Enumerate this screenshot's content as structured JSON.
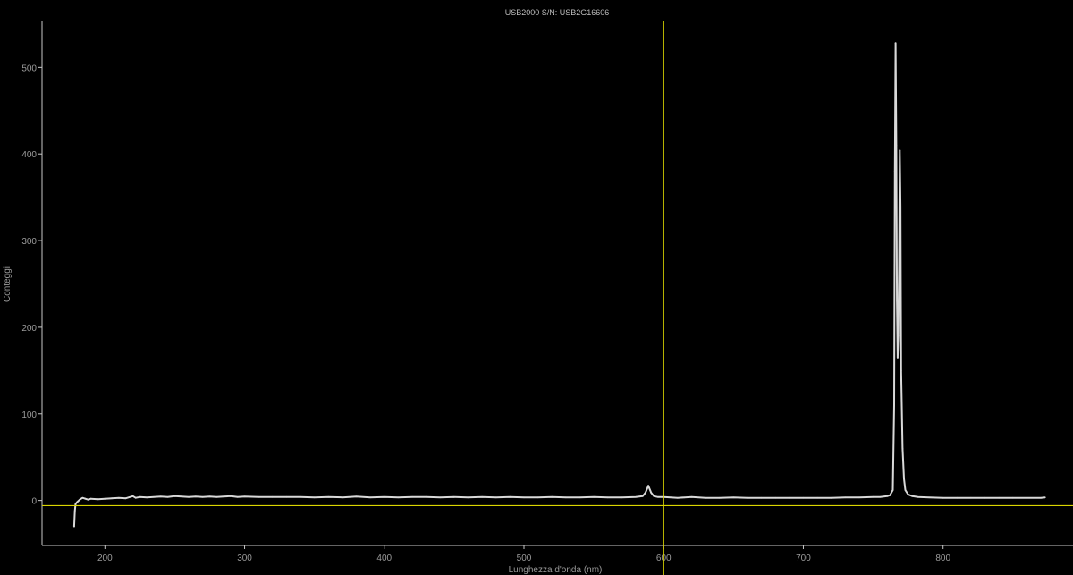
{
  "chart_data": {
    "type": "line",
    "title": "USB2000 S/N: USB2G16606",
    "xlabel": "Lunghezza d'onda (nm)",
    "ylabel": "Conteggi",
    "xlim": [
      155,
      893
    ],
    "ylim": [
      -52,
      553
    ],
    "xticks": [
      200,
      300,
      400,
      500,
      600,
      700,
      800
    ],
    "yticks": [
      0,
      100,
      200,
      300,
      400,
      500
    ],
    "grid": false,
    "colors": {
      "background": "#000000",
      "axes": "#c8c8c8",
      "series": "#d9d9d9",
      "cursor": "#d9d400",
      "text": "#9a9a9a"
    },
    "cursor": {
      "x": 600,
      "y": -6
    },
    "series": [
      {
        "name": "",
        "points": [
          [
            178,
            -30
          ],
          [
            178.5,
            -12
          ],
          [
            179,
            -4
          ],
          [
            180,
            -2
          ],
          [
            182,
            1
          ],
          [
            184,
            3
          ],
          [
            186,
            2
          ],
          [
            188,
            1
          ],
          [
            190,
            2
          ],
          [
            195,
            1.5
          ],
          [
            200,
            2
          ],
          [
            205,
            2.5
          ],
          [
            210,
            3
          ],
          [
            215,
            2.5
          ],
          [
            220,
            5
          ],
          [
            222,
            3
          ],
          [
            225,
            4
          ],
          [
            230,
            3.5
          ],
          [
            235,
            4
          ],
          [
            240,
            4.5
          ],
          [
            245,
            4
          ],
          [
            250,
            5
          ],
          [
            255,
            4.5
          ],
          [
            260,
            4
          ],
          [
            265,
            4.5
          ],
          [
            270,
            4
          ],
          [
            275,
            4.5
          ],
          [
            280,
            4
          ],
          [
            285,
            4.5
          ],
          [
            290,
            5
          ],
          [
            295,
            4
          ],
          [
            300,
            4.5
          ],
          [
            310,
            4
          ],
          [
            320,
            4
          ],
          [
            330,
            4
          ],
          [
            340,
            4
          ],
          [
            350,
            3.5
          ],
          [
            360,
            4
          ],
          [
            370,
            3.5
          ],
          [
            380,
            4.5
          ],
          [
            390,
            3.5
          ],
          [
            400,
            4
          ],
          [
            410,
            3.5
          ],
          [
            420,
            4
          ],
          [
            430,
            4
          ],
          [
            440,
            3.5
          ],
          [
            450,
            4
          ],
          [
            460,
            3.5
          ],
          [
            470,
            4
          ],
          [
            480,
            3.5
          ],
          [
            490,
            4
          ],
          [
            500,
            3.5
          ],
          [
            510,
            3.5
          ],
          [
            520,
            4
          ],
          [
            530,
            3.5
          ],
          [
            540,
            3.5
          ],
          [
            550,
            4
          ],
          [
            560,
            3.5
          ],
          [
            570,
            3.5
          ],
          [
            580,
            4
          ],
          [
            585,
            5
          ],
          [
            587,
            9
          ],
          [
            589,
            17
          ],
          [
            591,
            9
          ],
          [
            593,
            5
          ],
          [
            596,
            4
          ],
          [
            600,
            4
          ],
          [
            605,
            3.5
          ],
          [
            610,
            3
          ],
          [
            615,
            3.5
          ],
          [
            620,
            4
          ],
          [
            630,
            3
          ],
          [
            640,
            3
          ],
          [
            650,
            3.5
          ],
          [
            660,
            3
          ],
          [
            670,
            3
          ],
          [
            680,
            3
          ],
          [
            690,
            3
          ],
          [
            700,
            3
          ],
          [
            710,
            3
          ],
          [
            720,
            3
          ],
          [
            730,
            3.5
          ],
          [
            740,
            3.5
          ],
          [
            750,
            4
          ],
          [
            755,
            4
          ],
          [
            760,
            5
          ],
          [
            762,
            6
          ],
          [
            764,
            12
          ],
          [
            765,
            110
          ],
          [
            765.5,
            380
          ],
          [
            766,
            528
          ],
          [
            766.5,
            410
          ],
          [
            767,
            230
          ],
          [
            767.5,
            165
          ],
          [
            768,
            190
          ],
          [
            768.5,
            270
          ],
          [
            769,
            404
          ],
          [
            769.5,
            340
          ],
          [
            770,
            150
          ],
          [
            771,
            60
          ],
          [
            772,
            25
          ],
          [
            773,
            12
          ],
          [
            775,
            7
          ],
          [
            778,
            5
          ],
          [
            782,
            4
          ],
          [
            790,
            3.5
          ],
          [
            800,
            3
          ],
          [
            810,
            3
          ],
          [
            820,
            3
          ],
          [
            830,
            3
          ],
          [
            840,
            3
          ],
          [
            850,
            3
          ],
          [
            860,
            3
          ],
          [
            870,
            3
          ],
          [
            873,
            3.5
          ]
        ]
      }
    ]
  }
}
